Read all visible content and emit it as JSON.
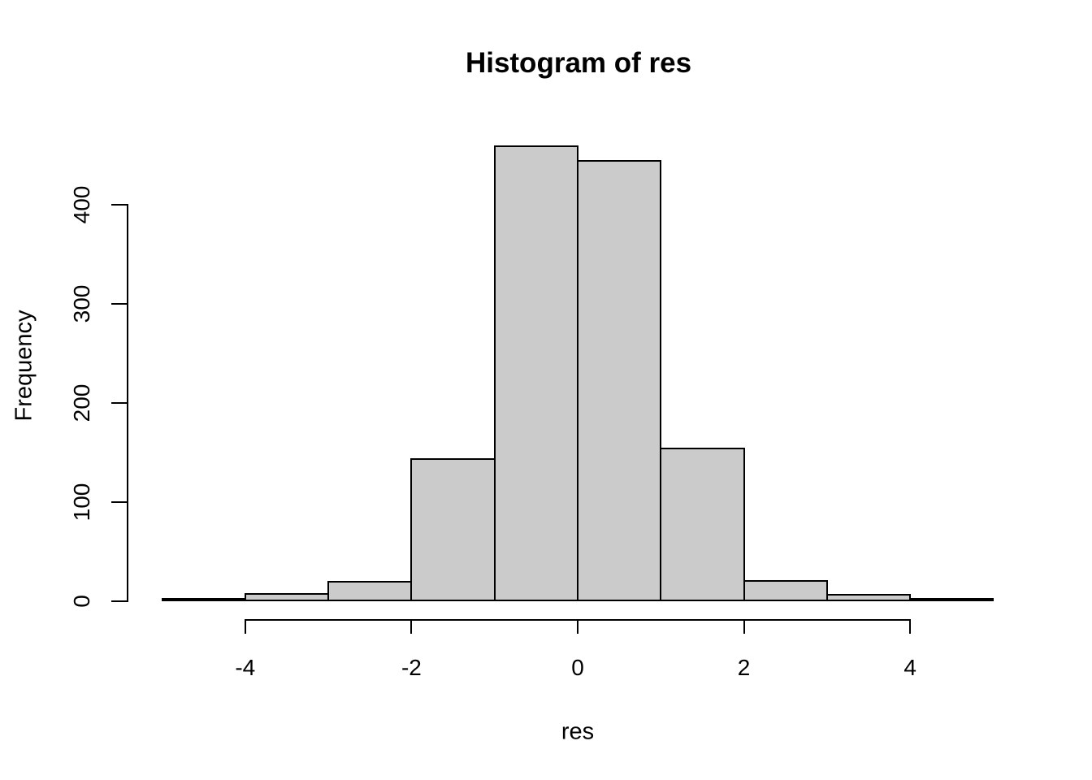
{
  "figure": {
    "background": "#FFFFFF"
  },
  "chart_data": {
    "type": "bar",
    "variant": "histogram",
    "title": "Histogram of res",
    "xlabel": "res",
    "ylabel": "Frequency",
    "bin_edges": [
      -5,
      -4,
      -3,
      -2,
      -1,
      0,
      1,
      2,
      3,
      4,
      5
    ],
    "counts": [
      2,
      7,
      19,
      143,
      459,
      444,
      154,
      20,
      6,
      2
    ],
    "x_ticks": [
      -4,
      -2,
      0,
      2,
      4
    ],
    "x_tick_labels": [
      "-4",
      "-2",
      "0",
      "2",
      "4"
    ],
    "y_ticks": [
      0,
      100,
      200,
      300,
      400
    ],
    "y_tick_labels": [
      "0",
      "100",
      "200",
      "300",
      "400"
    ],
    "xlim": [
      -5.4,
      5.4
    ],
    "ylim": [
      0,
      460
    ],
    "grid": false,
    "legend": false,
    "bar_fill": "#CBCBCB",
    "bar_border": "#000000",
    "axis_color": "#000000",
    "text_color": "#000000"
  }
}
